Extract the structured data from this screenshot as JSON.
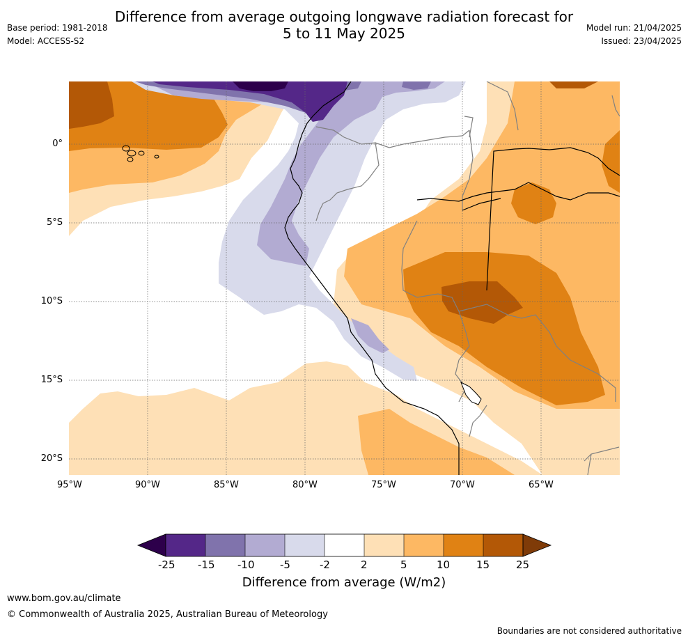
{
  "header": {
    "title_line1": "Difference from average outgoing longwave radiation forecast for",
    "title_line2": "5 to 11 May 2025",
    "base_period": "Base period: 1981-2018",
    "model": "Model: ACCESS-S2",
    "model_run": "Model run: 21/04/2025",
    "issued": "Issued: 23/04/2025"
  },
  "map": {
    "lon_labels": [
      "95°W",
      "90°W",
      "85°W",
      "80°W",
      "75°W",
      "70°W",
      "65°W"
    ],
    "lat_labels": [
      "0°",
      "5°S",
      "10°S",
      "15°S",
      "20°S"
    ]
  },
  "colorbar": {
    "ticks": [
      "-25",
      "-15",
      "-10",
      "-5",
      "-2",
      "2",
      "5",
      "10",
      "15",
      "25"
    ],
    "colors": [
      "#2d004b",
      "#542788",
      "#8073ac",
      "#b2abd2",
      "#d8daeb",
      "#ffffff",
      "#fee0b6",
      "#fdb863",
      "#e08214",
      "#b35806",
      "#7f3b08"
    ],
    "title": "Difference from average (W/m2)"
  },
  "footer": {
    "website": "www.bom.gov.au/climate",
    "copyright": "© Commonwealth of Australia 2025, Australian Bureau of Meteorology",
    "disclaimer": "Boundaries are not considered authoritative"
  }
}
